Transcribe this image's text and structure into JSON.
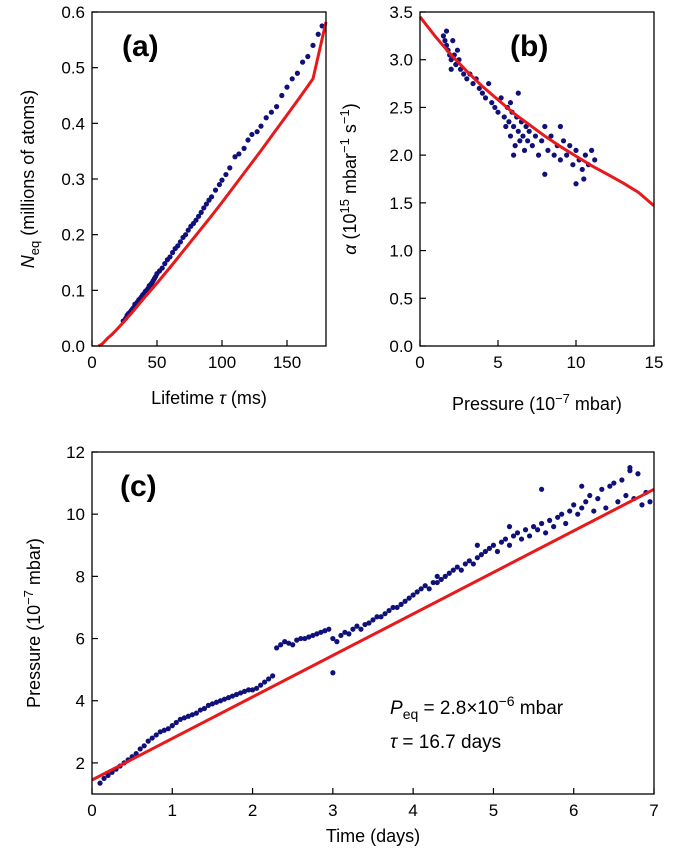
{
  "chart_data": [
    {
      "panel": "(a)",
      "type": "scatter",
      "panel_label": "(a)",
      "xlabel": {
        "prefix": "Lifetime ",
        "symbol": "τ",
        "suffix": " (ms)"
      },
      "ylabel": {
        "symbol": "N",
        "subscript": "eq",
        "suffix": " (millions of atoms)"
      },
      "xlim": [
        0,
        180
      ],
      "ylim": [
        0,
        0.6
      ],
      "xticks": [
        0,
        50,
        100,
        150
      ],
      "xtick_labels": [
        "0",
        "50",
        "100",
        "150"
      ],
      "yticks": [
        0,
        0.1,
        0.2,
        0.3,
        0.4,
        0.5,
        0.6
      ],
      "ytick_labels": [
        "0.0",
        "0.1",
        "0.2",
        "0.3",
        "0.4",
        "0.5",
        "0.6"
      ],
      "grid": false,
      "marker_color": "#10107a",
      "fit_color": "#e8191a",
      "x": [
        24,
        26,
        27,
        28,
        29,
        30,
        31,
        32,
        33,
        33,
        34,
        35,
        36,
        37,
        38,
        39,
        40,
        41,
        42,
        43,
        44,
        45,
        46,
        47,
        48,
        49,
        50,
        52,
        54,
        56,
        58,
        60,
        62,
        64,
        66,
        68,
        70,
        72,
        74,
        76,
        78,
        80,
        82,
        84,
        86,
        88,
        90,
        92,
        95,
        98,
        100,
        103,
        106,
        110,
        113,
        117,
        120,
        123,
        127,
        130,
        134,
        138,
        142,
        146,
        150,
        154,
        158,
        162,
        166,
        170,
        174,
        177
      ],
      "y": [
        0.045,
        0.05,
        0.055,
        0.058,
        0.06,
        0.063,
        0.066,
        0.069,
        0.07,
        0.075,
        0.076,
        0.079,
        0.083,
        0.085,
        0.088,
        0.092,
        0.094,
        0.098,
        0.1,
        0.103,
        0.108,
        0.11,
        0.113,
        0.117,
        0.121,
        0.125,
        0.13,
        0.135,
        0.14,
        0.148,
        0.155,
        0.16,
        0.168,
        0.175,
        0.18,
        0.187,
        0.195,
        0.2,
        0.208,
        0.215,
        0.22,
        0.226,
        0.233,
        0.24,
        0.248,
        0.255,
        0.262,
        0.268,
        0.28,
        0.29,
        0.298,
        0.308,
        0.32,
        0.34,
        0.345,
        0.355,
        0.37,
        0.38,
        0.385,
        0.395,
        0.41,
        0.42,
        0.43,
        0.45,
        0.465,
        0.48,
        0.49,
        0.51,
        0.52,
        0.54,
        0.56,
        0.575
      ],
      "fit": {
        "x": [
          5,
          8,
          10,
          12,
          15,
          18,
          20,
          25,
          30,
          35,
          40,
          50,
          60,
          70,
          80,
          90,
          100,
          110,
          120,
          130,
          140,
          150,
          160,
          170,
          180
        ],
        "y": [
          0,
          0.004,
          0.009,
          0.014,
          0.02,
          0.027,
          0.032,
          0.045,
          0.058,
          0.072,
          0.086,
          0.113,
          0.141,
          0.17,
          0.199,
          0.228,
          0.258,
          0.289,
          0.32,
          0.351,
          0.383,
          0.415,
          0.447,
          0.48,
          0.582
        ]
      }
    },
    {
      "panel": "(b)",
      "type": "scatter",
      "panel_label": "(b)",
      "xlabel": {
        "prefix": "Pressure (10",
        "sup": "−7",
        "suffix": " mbar)"
      },
      "ylabel": {
        "symbol": "α",
        "prefix": " (10",
        "sup1": "15",
        "mid": " mbar",
        "sup2": "−1",
        "mid2": " s",
        "sup3": "−1",
        "suffix": ")"
      },
      "xlim": [
        0,
        15
      ],
      "ylim": [
        0,
        3.5
      ],
      "xticks": [
        0,
        5,
        10,
        15
      ],
      "xtick_labels": [
        "0",
        "5",
        "10",
        "15"
      ],
      "yticks": [
        0,
        0.5,
        1.0,
        1.5,
        2.0,
        2.5,
        3.0,
        3.5
      ],
      "ytick_labels": [
        "0.0",
        "0.5",
        "1.0",
        "1.5",
        "2.0",
        "2.5",
        "3.0",
        "3.5"
      ],
      "grid": false,
      "marker_color": "#10107a",
      "fit_color": "#e8191a",
      "x": [
        1.5,
        1.6,
        1.7,
        1.8,
        1.9,
        2.0,
        2.1,
        2.2,
        2.3,
        2.4,
        2.5,
        2.6,
        2.8,
        3.0,
        3.2,
        3.4,
        3.6,
        3.8,
        4.0,
        4.2,
        4.4,
        4.6,
        4.8,
        5.0,
        5.2,
        5.4,
        5.5,
        5.6,
        5.7,
        5.8,
        5.9,
        6.0,
        6.1,
        6.2,
        6.3,
        6.4,
        6.5,
        6.6,
        6.7,
        6.8,
        6.9,
        7.0,
        7.2,
        7.4,
        7.6,
        7.8,
        8.0,
        8.2,
        8.4,
        8.6,
        8.8,
        9.0,
        9.2,
        9.4,
        9.6,
        9.8,
        10.0,
        10.2,
        10.4,
        10.6,
        10.8,
        11.0,
        11.2,
        1.7,
        2.0,
        2.3,
        5.8,
        6.0,
        6.3,
        8.0,
        9.0,
        10.0,
        10.5
      ],
      "y": [
        3.25,
        3.2,
        3.15,
        3.1,
        3.05,
        3.0,
        3.2,
        3.05,
        2.95,
        3.1,
        3.0,
        2.9,
        2.85,
        2.8,
        2.85,
        2.75,
        2.8,
        2.7,
        2.65,
        2.6,
        2.75,
        2.55,
        2.5,
        2.45,
        2.6,
        2.4,
        2.3,
        2.5,
        2.35,
        2.2,
        2.45,
        2.3,
        2.1,
        2.4,
        2.25,
        2.15,
        2.35,
        2.2,
        2.05,
        2.3,
        2.15,
        2.25,
        2.1,
        2.2,
        2.0,
        2.15,
        2.3,
        2.05,
        2.2,
        2.0,
        2.1,
        1.95,
        2.15,
        2.0,
        2.1,
        1.9,
        2.05,
        1.95,
        1.85,
        2.0,
        1.9,
        2.05,
        1.95,
        3.3,
        2.9,
        2.95,
        2.55,
        2.0,
        2.65,
        1.8,
        2.3,
        1.7,
        1.75
      ],
      "fit": {
        "x": [
          0,
          1,
          2,
          3,
          4,
          5,
          6,
          7,
          8,
          9,
          10,
          11,
          12,
          13,
          14,
          15
        ],
        "y": [
          3.45,
          3.24,
          3.05,
          2.88,
          2.72,
          2.58,
          2.44,
          2.32,
          2.2,
          2.09,
          1.99,
          1.89,
          1.8,
          1.71,
          1.61,
          1.47
        ]
      }
    },
    {
      "panel": "(c)",
      "type": "scatter",
      "panel_label": "(c)",
      "xlabel": "Time (days)",
      "ylabel": {
        "prefix": "Pressure (10",
        "sup": "−7",
        "suffix": " mbar)"
      },
      "xlim": [
        0,
        7
      ],
      "ylim": [
        1,
        12
      ],
      "xticks": [
        0,
        1,
        2,
        3,
        4,
        5,
        6,
        7
      ],
      "xtick_labels": [
        "0",
        "1",
        "2",
        "3",
        "4",
        "5",
        "6",
        "7"
      ],
      "yticks": [
        2,
        4,
        6,
        8,
        10,
        12
      ],
      "ytick_labels": [
        "2",
        "4",
        "6",
        "8",
        "10",
        "12"
      ],
      "grid": false,
      "marker_color": "#10107a",
      "fit_color": "#e8191a",
      "annotations": [
        {
          "symbol": "P",
          "subscript": "eq",
          "text": " = 2.8×10",
          "sup": "−6",
          "suffix": " mbar"
        },
        {
          "symbol": "τ",
          "text": " = 16.7 days"
        }
      ],
      "x": [
        0.1,
        0.15,
        0.2,
        0.25,
        0.3,
        0.35,
        0.4,
        0.45,
        0.5,
        0.55,
        0.6,
        0.65,
        0.7,
        0.75,
        0.8,
        0.85,
        0.9,
        0.95,
        1.0,
        1.05,
        1.1,
        1.15,
        1.2,
        1.25,
        1.3,
        1.35,
        1.4,
        1.45,
        1.5,
        1.55,
        1.6,
        1.65,
        1.7,
        1.75,
        1.8,
        1.85,
        1.9,
        1.95,
        2.0,
        2.05,
        2.1,
        2.15,
        2.2,
        2.25,
        2.3,
        2.35,
        2.4,
        2.45,
        2.5,
        2.55,
        2.6,
        2.65,
        2.7,
        2.75,
        2.8,
        2.85,
        2.9,
        2.95,
        3.0,
        3.05,
        3.1,
        3.15,
        3.2,
        3.25,
        3.3,
        3.35,
        3.4,
        3.45,
        3.5,
        3.55,
        3.6,
        3.65,
        3.7,
        3.75,
        3.8,
        3.85,
        3.9,
        3.95,
        4.0,
        4.05,
        4.1,
        4.15,
        4.2,
        4.25,
        4.3,
        4.35,
        4.4,
        4.45,
        4.5,
        4.55,
        4.6,
        4.65,
        4.7,
        4.75,
        4.8,
        4.85,
        4.9,
        4.95,
        5.0,
        5.05,
        5.1,
        5.15,
        5.2,
        5.25,
        5.3,
        5.35,
        5.4,
        5.45,
        5.5,
        5.55,
        5.6,
        5.65,
        5.7,
        5.75,
        5.8,
        5.85,
        5.9,
        5.95,
        6.0,
        6.05,
        6.1,
        6.15,
        6.2,
        6.25,
        6.3,
        6.35,
        6.4,
        6.45,
        6.5,
        6.55,
        6.6,
        6.65,
        6.7,
        6.75,
        6.8,
        6.85,
        6.9,
        6.95,
        3.0,
        4.3,
        4.8,
        5.2,
        5.6,
        6.1,
        6.7
      ],
      "y": [
        1.35,
        1.5,
        1.6,
        1.7,
        1.8,
        1.9,
        2.0,
        2.1,
        2.2,
        2.3,
        2.45,
        2.55,
        2.7,
        2.8,
        2.9,
        3.0,
        3.05,
        3.1,
        3.2,
        3.3,
        3.4,
        3.45,
        3.5,
        3.55,
        3.6,
        3.7,
        3.75,
        3.85,
        3.9,
        3.95,
        4.0,
        4.05,
        4.1,
        4.15,
        4.2,
        4.25,
        4.3,
        4.35,
        4.35,
        4.4,
        4.5,
        4.6,
        4.7,
        4.8,
        5.7,
        5.8,
        5.9,
        5.85,
        5.8,
        5.95,
        6.0,
        6.0,
        6.05,
        6.1,
        6.15,
        6.2,
        6.25,
        6.3,
        6.0,
        5.9,
        6.1,
        6.2,
        6.15,
        6.3,
        6.4,
        6.3,
        6.45,
        6.5,
        6.6,
        6.7,
        6.7,
        6.8,
        6.9,
        7.0,
        7.0,
        7.1,
        7.2,
        7.3,
        7.4,
        7.5,
        7.6,
        7.7,
        7.6,
        7.8,
        8.0,
        7.9,
        8.0,
        8.1,
        8.2,
        8.3,
        8.2,
        8.4,
        8.5,
        8.4,
        8.6,
        8.7,
        8.8,
        8.9,
        9.0,
        8.8,
        9.1,
        9.2,
        9.0,
        9.3,
        9.4,
        9.2,
        9.5,
        9.3,
        9.6,
        9.5,
        9.7,
        9.4,
        9.8,
        9.6,
        9.9,
        10.0,
        9.7,
        10.1,
        10.3,
        10.0,
        10.2,
        10.4,
        10.6,
        10.1,
        10.5,
        10.8,
        10.2,
        10.9,
        11.0,
        10.4,
        11.1,
        10.6,
        11.5,
        10.5,
        11.3,
        10.3,
        10.7,
        10.4,
        4.9,
        7.8,
        9.0,
        9.6,
        10.8,
        10.9,
        11.4
      ],
      "fit": {
        "x": [
          0,
          7
        ],
        "y": [
          1.45,
          10.8
        ]
      }
    }
  ]
}
